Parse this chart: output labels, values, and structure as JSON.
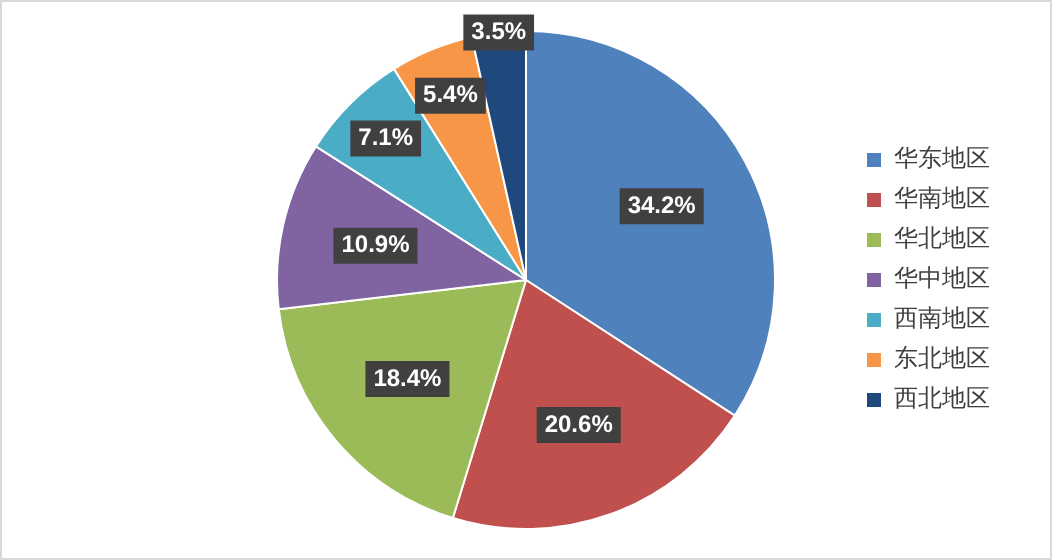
{
  "chart_data": {
    "type": "pie",
    "categories": [
      "华东地区",
      "华南地区",
      "华北地区",
      "华中地区",
      "西南地区",
      "东北地区",
      "西北地区"
    ],
    "values": [
      34.2,
      20.6,
      18.4,
      10.9,
      7.1,
      5.4,
      3.5
    ],
    "value_labels": [
      "34.2%",
      "20.6%",
      "18.4%",
      "10.9%",
      "7.1%",
      "5.4%",
      "3.5%"
    ],
    "colors": [
      "#4f81bd",
      "#c0504d",
      "#9bbb59",
      "#8064a2",
      "#4bacc6",
      "#f79646",
      "#1f497d"
    ],
    "legend": "right"
  }
}
